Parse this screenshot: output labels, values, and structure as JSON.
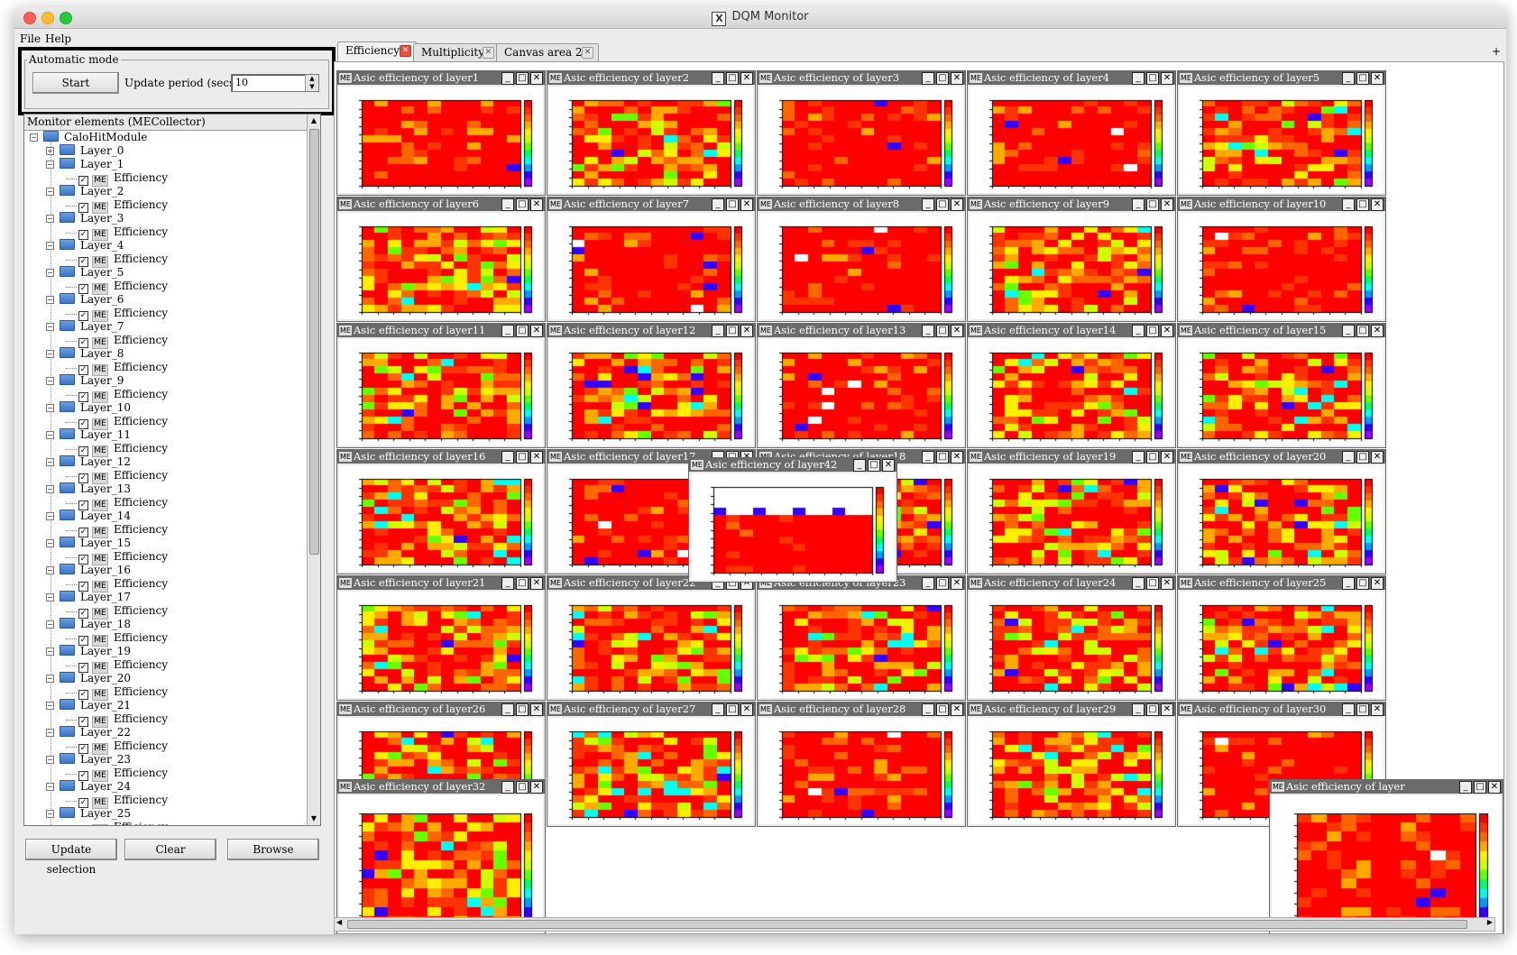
{
  "window": {
    "title": "DQM Monitor"
  },
  "menu": [
    "File",
    "Help"
  ],
  "automatic_mode": {
    "legend": "Automatic mode",
    "start_label": "Start",
    "update_period_label": "Update period (secs) :",
    "update_period_value": "10"
  },
  "tree": {
    "header": "Monitor elements (MECollector)",
    "root": "CaloHitModule",
    "me_label": "ME",
    "item_label": "Efficiency",
    "layers": [
      "Layer_0",
      "Layer_1",
      "Layer_2",
      "Layer_3",
      "Layer_4",
      "Layer_5",
      "Layer_6",
      "Layer_7",
      "Layer_8",
      "Layer_9",
      "Layer_10",
      "Layer_11",
      "Layer_12",
      "Layer_13",
      "Layer_14",
      "Layer_15",
      "Layer_16",
      "Layer_17",
      "Layer_18",
      "Layer_19",
      "Layer_20",
      "Layer_21",
      "Layer_22",
      "Layer_23",
      "Layer_24",
      "Layer_25"
    ]
  },
  "bottom_buttons": {
    "update_selection": "Update selection",
    "clear": "Clear",
    "browse": "Browse"
  },
  "tabs": [
    {
      "label": "Efficiency",
      "active": true
    },
    {
      "label": "Multiplicity",
      "active": false
    },
    {
      "label": "Canvas area 2",
      "active": false
    }
  ],
  "canvas_windows": [
    "Asic efficiency of layer1",
    "Asic efficiency of layer2",
    "Asic efficiency of layer3",
    "Asic efficiency of layer4",
    "Asic efficiency of layer5",
    "Asic efficiency of layer6",
    "Asic efficiency of layer7",
    "Asic efficiency of layer8",
    "Asic efficiency of layer9",
    "Asic efficiency of layer10",
    "Asic efficiency of layer11",
    "Asic efficiency of layer12",
    "Asic efficiency of layer13",
    "Asic efficiency of layer14",
    "Asic efficiency of layer15",
    "Asic efficiency of layer16",
    "Asic efficiency of layer17",
    "Asic efficiency of layer18",
    "Asic efficiency of layer19",
    "Asic efficiency of layer20",
    "Asic efficiency of layer21",
    "Asic efficiency of layer22",
    "Asic efficiency of layer23",
    "Asic efficiency of layer24",
    "Asic efficiency of layer25",
    "Asic efficiency of layer26",
    "Asic efficiency of layer27",
    "Asic efficiency of layer28",
    "Asic efficiency of layer29",
    "Asic efficiency of layer30"
  ],
  "canvas_subtitles": [
    "Asic efficiency of layer1",
    "Asic efficiency of layer2",
    "Asic efficiency of layer3",
    "Asic efficiency of layer4",
    "Asic efficiency of layer5",
    "Asic efficiency of layer6",
    "Asic efficiency of layer7",
    "Asic efficiency of layer8",
    "Asic efficiency of layer9",
    "Asic efficiency of layer10",
    "Asic efficiency of layer11",
    "Asic efficiency of layer12",
    "Asic efficiency of layer13",
    "Asic efficiency of layer14",
    "Asic efficiency of layer15",
    "Asic efficiency of layer16",
    "Asic efficiency of layer17",
    "Asic efficiency of layer18",
    "Asic efficiency of layer19",
    "Asic efficiency of layer20",
    "Asic efficiency of layer21",
    "Asic efficiency of layer22",
    "Asic efficiency of layer23",
    "Asic efficiency of layer24",
    "Asic efficiency of layer25",
    "Asic efficiency of layer26",
    "Asic efficiency of layer27",
    "Asic efficiency of layer28",
    "Asic efficiency of layer29",
    "Asic efficiency of layer30"
  ],
  "floating_windows": {
    "layer42": {
      "title": "Asic efficiency of layer42",
      "subtitle": "Asic efficiency of layer42"
    },
    "layer32": {
      "title": "Asic efficiency of layer32",
      "subtitle": "Asic efficiency of layer32"
    },
    "right_partial": {
      "title": "Asic efficiency of layer",
      "subtitle": "Asic efficiency of la"
    }
  },
  "heatmap_palette": [
    "#ff0000",
    "#ff3300",
    "#ff6600",
    "#ffaa00",
    "#ffee00",
    "#ccff00",
    "#66ff00",
    "#00ff66",
    "#00ffee",
    "#0099ff",
    "#3300ff",
    "#9900ff",
    "#ffffff"
  ]
}
